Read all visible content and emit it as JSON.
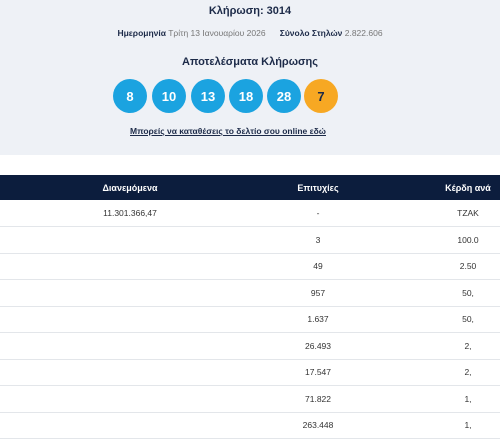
{
  "header": {
    "title": "Κλήρωση: 3014",
    "date_label": "Ημερομηνία",
    "date": "Τρίτη 13 Ιανουαρίου 2026",
    "total_label": "Σύνολο Στηλών",
    "total": "2.822.606"
  },
  "results": {
    "title": "Αποτελέσματα Κλήρωσης",
    "numbers": [
      "8",
      "10",
      "13",
      "18",
      "28"
    ],
    "joker": "7",
    "link": "Μπορείς να καταθέσεις το δελτίο σου online εδώ"
  },
  "table": {
    "columns": [
      "Διανεμόμενα",
      "Επιτυχίες",
      "Κέρδη ανά"
    ],
    "rows": [
      {
        "distributed": "11.301.366,47",
        "winners": "-",
        "prize": "ΤΖΑΚ"
      },
      {
        "winners": "3",
        "prize": "100.0"
      },
      {
        "winners": "49",
        "prize": "2.50"
      },
      {
        "winners": "957",
        "prize": "50,"
      },
      {
        "winners": "1.637",
        "prize": "50,"
      },
      {
        "winners": "26.493",
        "prize": "2,"
      },
      {
        "winners": "17.547",
        "prize": "2,"
      },
      {
        "winners": "71.822",
        "prize": "1,"
      },
      {
        "winners": "263.448",
        "prize": "1,"
      }
    ]
  }
}
